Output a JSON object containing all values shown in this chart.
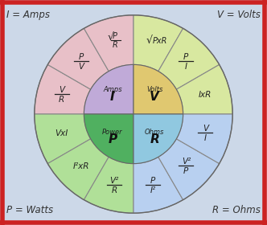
{
  "bg_color": "#ccd8e8",
  "border_color": "#cc2222",
  "corner_labels": {
    "top_left": "I = Amps",
    "top_right": "V = Volts",
    "bot_left": "P = Watts",
    "bot_right": "R = Ohms"
  },
  "inner_r": 0.22,
  "outer_r": 0.44,
  "center_parts": [
    {
      "a1": 90,
      "a2": 180,
      "color": "#c0aad8",
      "label": "Amps",
      "symbol": "I"
    },
    {
      "a1": 0,
      "a2": 90,
      "color": "#e0c870",
      "label": "Volts",
      "symbol": "V"
    },
    {
      "a1": 180,
      "a2": 270,
      "color": "#50b060",
      "label": "Power",
      "symbol": "P"
    },
    {
      "a1": 270,
      "a2": 360,
      "color": "#90c8e0",
      "label": "Ohms",
      "symbol": "R"
    }
  ],
  "outer_slices": [
    {
      "a1": 150,
      "a2": 180,
      "color": "#e8c0c8",
      "num": "V",
      "den": "R",
      "sqrt": false
    },
    {
      "a1": 120,
      "a2": 150,
      "color": "#e8c0c8",
      "num": "P",
      "den": "V",
      "sqrt": false
    },
    {
      "a1": 90,
      "a2": 120,
      "color": "#e8c0c8",
      "num": "P",
      "den": "R",
      "sqrt": true
    },
    {
      "a1": 60,
      "a2": 90,
      "color": "#d8e8a0",
      "num": "PxR",
      "den": "",
      "sqrt": true
    },
    {
      "a1": 30,
      "a2": 60,
      "color": "#d8e8a0",
      "num": "P",
      "den": "I",
      "sqrt": false
    },
    {
      "a1": 0,
      "a2": 30,
      "color": "#d8e8a0",
      "num": "IxR",
      "den": "",
      "sqrt": false
    },
    {
      "a1": 180,
      "a2": 210,
      "color": "#b0e098",
      "num": "VxI",
      "den": "",
      "sqrt": false
    },
    {
      "a1": 210,
      "a2": 240,
      "color": "#b0e098",
      "num": "I²xR",
      "den": "",
      "sqrt": false
    },
    {
      "a1": 240,
      "a2": 270,
      "color": "#b0e098",
      "num": "V²",
      "den": "R",
      "sqrt": false
    },
    {
      "a1": 270,
      "a2": 300,
      "color": "#b8d0f0",
      "num": "P",
      "den": "I²",
      "sqrt": false
    },
    {
      "a1": 300,
      "a2": 330,
      "color": "#b8d0f0",
      "num": "V²",
      "den": "P",
      "sqrt": false
    },
    {
      "a1": 330,
      "a2": 360,
      "color": "#b8d0f0",
      "num": "V",
      "den": "I",
      "sqrt": false
    }
  ]
}
